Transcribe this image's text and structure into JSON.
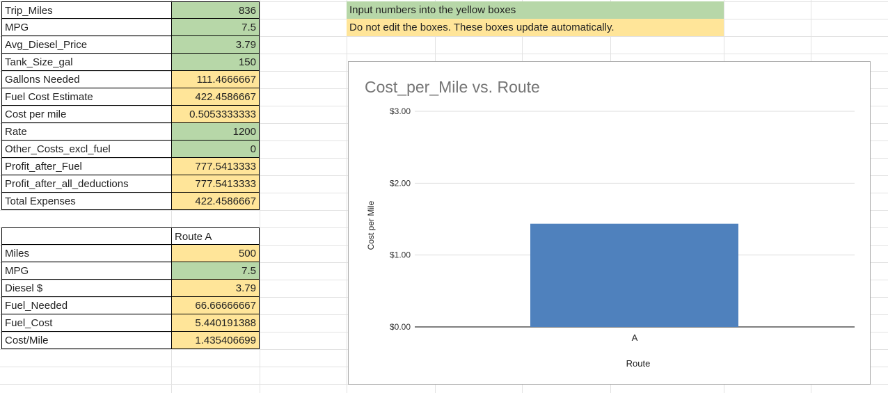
{
  "main_table": [
    {
      "label": "Trip_Miles",
      "value": "836",
      "kind": "input"
    },
    {
      "label": "MPG",
      "value": "7.5",
      "kind": "input"
    },
    {
      "label": "Avg_Diesel_Price",
      "value": "3.79",
      "kind": "input"
    },
    {
      "label": "Tank_Size_gal",
      "value": "150",
      "kind": "input"
    },
    {
      "label": "Gallons Needed",
      "value": "111.4666667",
      "kind": "auto"
    },
    {
      "label": "Fuel Cost Estimate",
      "value": "422.4586667",
      "kind": "auto"
    },
    {
      "label": "Cost per mile",
      "value": "0.5053333333",
      "kind": "auto"
    },
    {
      "label": "Rate",
      "value": "1200",
      "kind": "input"
    },
    {
      "label": "Other_Costs_excl_fuel",
      "value": "0",
      "kind": "input"
    },
    {
      "label": "Profit_after_Fuel",
      "value": "777.5413333",
      "kind": "auto"
    },
    {
      "label": "Profit_after_all_deductions",
      "value": "777.5413333",
      "kind": "auto"
    },
    {
      "label": "Total Expenses",
      "value": "422.4586667",
      "kind": "auto"
    }
  ],
  "route_table": {
    "header": "Route A",
    "rows": [
      {
        "label": "Miles",
        "value": "500",
        "kind": "auto"
      },
      {
        "label": "MPG",
        "value": "7.5",
        "kind": "input"
      },
      {
        "label": "Diesel $",
        "value": "3.79",
        "kind": "auto"
      },
      {
        "label": "Fuel_Needed",
        "value": "66.66666667",
        "kind": "auto"
      },
      {
        "label": "Fuel_Cost",
        "value": "5.440191388",
        "kind": "auto"
      },
      {
        "label": "Cost/Mile",
        "value": "1.435406699",
        "kind": "auto"
      }
    ]
  },
  "notes": {
    "input": "Input numbers into the yellow boxes",
    "auto": "Do not edit the  boxes. These boxes update automatically."
  },
  "colors": {
    "input": "#b7d7a8",
    "auto": "#ffe599",
    "bar": "#4f81bd"
  },
  "chart_data": {
    "type": "bar",
    "title": "Cost_per_Mile vs. Route",
    "xlabel": "Route",
    "ylabel": "Cost per Mile",
    "categories": [
      "A"
    ],
    "values": [
      1.435406699
    ],
    "ylim": [
      0,
      3
    ],
    "yticks": [
      "$0.00",
      "$1.00",
      "$2.00",
      "$3.00"
    ],
    "grid": true,
    "legend": "none"
  }
}
